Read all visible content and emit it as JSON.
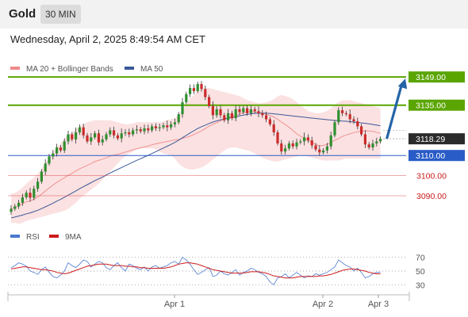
{
  "header": {
    "title": "Gold",
    "timeframe": "30 MIN"
  },
  "datetime": "Wednesday, April 2, 2025 8:49:54 AM CET",
  "colors": {
    "bollinger": "#f08a8a",
    "ma50": "#3b5998",
    "candle_up": "#2f8f2f",
    "candle_down": "#cc2b2b",
    "resistance": "#5aa500",
    "support": "#2a5cc7",
    "red_line": "#e04040",
    "arrow": "#2464a8",
    "rsi": "#4a78d0",
    "rsi_ma": "#cc1b1b",
    "last_price": "#2b2b2b"
  },
  "chart_data": [
    {
      "type": "candlestick",
      "title": "Gold",
      "legend": [
        {
          "name": "MA 20 + Bollinger Bands",
          "color": "#f08a8a"
        },
        {
          "name": "MA 50",
          "color": "#3b5998"
        }
      ],
      "ylim": [
        3077,
        3153
      ],
      "x_labels": [
        "Apr 1",
        "Apr 2",
        "Apr 3"
      ],
      "levels": [
        {
          "value": 3149.0,
          "label": "3149.00",
          "kind": "resistance"
        },
        {
          "value": 3135.0,
          "label": "3135.00",
          "kind": "resistance"
        },
        {
          "value": 3110.0,
          "label": "3110.00",
          "kind": "support"
        },
        {
          "value": 3100.0,
          "label": "3100.00",
          "kind": "red"
        },
        {
          "value": 3090.0,
          "label": "3090.00",
          "kind": "red"
        }
      ],
      "last_price": {
        "value": 3118.29,
        "label": "3118.29"
      },
      "arrow": {
        "from": 3118.3,
        "to": 3149.0
      },
      "closes": [
        3083.5,
        3084.7,
        3086.5,
        3089.2,
        3091.5,
        3089.0,
        3093.5,
        3097.0,
        3102.0,
        3106.0,
        3109.5,
        3111.0,
        3114.0,
        3112.5,
        3117.0,
        3120.5,
        3118.0,
        3121.5,
        3124.0,
        3120.0,
        3117.0,
        3119.0,
        3121.0,
        3116.5,
        3118.0,
        3120.5,
        3122.5,
        3120.0,
        3118.5,
        3121.0,
        3121.5,
        3120.5,
        3122.5,
        3123.0,
        3122.0,
        3123.5,
        3122.5,
        3124.5,
        3123.5,
        3124.0,
        3125.0,
        3124.0,
        3125.5,
        3126.5,
        3130.5,
        3136.5,
        3140.5,
        3143.5,
        3142.0,
        3145.5,
        3143.0,
        3139.0,
        3134.5,
        3130.0,
        3133.0,
        3130.0,
        3127.5,
        3131.0,
        3128.5,
        3133.0,
        3131.5,
        3133.5,
        3131.0,
        3133.0,
        3132.0,
        3131.0,
        3130.0,
        3128.0,
        3125.5,
        3121.5,
        3116.0,
        3112.0,
        3113.5,
        3116.0,
        3114.5,
        3116.5,
        3117.0,
        3119.0,
        3117.5,
        3115.0,
        3113.0,
        3111.5,
        3112.5,
        3114.5,
        3120.0,
        3126.5,
        3132.5,
        3131.0,
        3130.5,
        3128.0,
        3127.0,
        3124.5,
        3120.5,
        3115.5,
        3114.0,
        3116.0,
        3117.0,
        3118.3
      ],
      "ma20": [
        3083.5,
        3084.1,
        3084.9,
        3086.0,
        3087.1,
        3087.4,
        3088.3,
        3089.4,
        3090.8,
        3092.3,
        3093.9,
        3095.3,
        3096.7,
        3097.7,
        3099.0,
        3100.2,
        3101.1,
        3102.3,
        3103.4,
        3104.2,
        3105.1,
        3106.0,
        3107.0,
        3107.6,
        3108.1,
        3108.9,
        3109.7,
        3110.2,
        3110.6,
        3111.1,
        3111.7,
        3112.2,
        3112.8,
        3113.4,
        3113.8,
        3114.3,
        3114.7,
        3115.3,
        3115.8,
        3116.2,
        3116.6,
        3117.0,
        3117.3,
        3117.7,
        3118.0,
        3118.5,
        3119.0,
        3119.6,
        3120.4,
        3121.3,
        3122.3,
        3123.4,
        3124.6,
        3125.5,
        3126.3,
        3127.3,
        3128.0,
        3128.9,
        3129.4,
        3130.0,
        3130.6,
        3131.4,
        3131.6,
        3131.9,
        3131.6,
        3131.5,
        3131.0,
        3130.5,
        3129.9,
        3129.1,
        3128.0,
        3126.6,
        3125.4,
        3124.0,
        3122.5,
        3120.8,
        3119.6,
        3118.4,
        3117.5,
        3116.6,
        3115.6,
        3114.8,
        3115.0,
        3115.5,
        3116.4,
        3117.6,
        3118.4,
        3119.5,
        3120.1,
        3120.8,
        3121.3,
        3121.8,
        3122.1,
        3122.3,
        3122.2,
        3122.0,
        3121.5,
        3121.0
      ],
      "bb_upper": [
        3091.0,
        3091.5,
        3092.5,
        3094.0,
        3096.0,
        3097.5,
        3099.0,
        3101.0,
        3103.5,
        3106.0,
        3109.0,
        3111.5,
        3114.0,
        3116.0,
        3118.5,
        3120.5,
        3121.5,
        3123.0,
        3124.5,
        3125.5,
        3126.5,
        3127.0,
        3127.5,
        3127.5,
        3127.5,
        3127.5,
        3127.5,
        3127.0,
        3126.5,
        3126.0,
        3125.5,
        3125.5,
        3126.0,
        3126.5,
        3126.5,
        3126.5,
        3126.5,
        3126.5,
        3126.5,
        3126.5,
        3127.0,
        3127.5,
        3128.0,
        3128.5,
        3130.0,
        3132.5,
        3135.5,
        3138.5,
        3140.0,
        3142.0,
        3143.0,
        3143.5,
        3143.5,
        3143.0,
        3142.5,
        3142.0,
        3141.5,
        3141.0,
        3140.5,
        3140.0,
        3139.5,
        3138.5,
        3137.5,
        3137.0,
        3136.5,
        3136.0,
        3136.0,
        3136.5,
        3137.0,
        3138.0,
        3139.5,
        3140.0,
        3139.5,
        3139.0,
        3138.0,
        3136.5,
        3135.0,
        3133.5,
        3132.0,
        3131.5,
        3131.0,
        3131.0,
        3131.5,
        3132.0,
        3133.5,
        3135.0,
        3136.5,
        3137.5,
        3137.5,
        3137.5,
        3137.0,
        3136.5,
        3136.0,
        3135.5,
        3135.0,
        3134.5,
        3134.0,
        3133.5
      ],
      "bb_lower": [
        3076.5,
        3076.5,
        3076.0,
        3076.5,
        3077.5,
        3078.0,
        3078.5,
        3079.0,
        3079.5,
        3080.0,
        3080.5,
        3081.0,
        3081.5,
        3082.0,
        3082.5,
        3083.5,
        3085.0,
        3086.5,
        3088.5,
        3090.0,
        3091.5,
        3093.0,
        3094.5,
        3096.0,
        3098.0,
        3100.0,
        3102.0,
        3104.0,
        3106.0,
        3108.0,
        3109.5,
        3111.0,
        3112.0,
        3113.0,
        3113.5,
        3113.5,
        3113.5,
        3113.5,
        3113.0,
        3112.0,
        3111.0,
        3110.5,
        3110.0,
        3108.5,
        3106.0,
        3104.5,
        3103.5,
        3103.0,
        3103.0,
        3103.5,
        3104.0,
        3105.0,
        3106.5,
        3108.0,
        3109.5,
        3111.0,
        3112.5,
        3113.5,
        3114.0,
        3114.0,
        3113.5,
        3113.0,
        3112.5,
        3112.0,
        3111.0,
        3110.0,
        3109.0,
        3108.0,
        3107.5,
        3107.0,
        3107.0,
        3107.5,
        3108.0,
        3108.5,
        3109.0,
        3109.5,
        3110.0,
        3110.0,
        3109.5,
        3109.0,
        3108.5,
        3108.0,
        3107.5,
        3107.5,
        3107.5,
        3107.5,
        3107.5,
        3108.0,
        3108.5,
        3108.5,
        3108.5,
        3108.5,
        3108.5,
        3108.5,
        3108.5,
        3108.5,
        3108.5,
        3108.5
      ],
      "ma50": [
        3079.0,
        3079.4,
        3079.9,
        3080.4,
        3081.0,
        3081.5,
        3082.1,
        3082.8,
        3083.6,
        3084.5,
        3085.4,
        3086.3,
        3087.3,
        3088.2,
        3089.2,
        3090.3,
        3091.3,
        3092.4,
        3093.5,
        3094.5,
        3095.5,
        3096.5,
        3097.5,
        3098.4,
        3099.3,
        3100.3,
        3101.3,
        3102.2,
        3103.1,
        3104.0,
        3104.9,
        3105.8,
        3106.7,
        3107.6,
        3108.4,
        3109.3,
        3110.1,
        3111.0,
        3111.9,
        3112.8,
        3113.7,
        3114.6,
        3115.5,
        3116.5,
        3117.6,
        3118.8,
        3120.0,
        3121.2,
        3122.3,
        3123.4,
        3124.3,
        3125.1,
        3125.9,
        3126.6,
        3127.2,
        3127.7,
        3128.1,
        3128.5,
        3128.9,
        3129.3,
        3129.7,
        3130.1,
        3130.4,
        3130.7,
        3130.9,
        3131.0,
        3131.0,
        3131.0,
        3130.9,
        3130.7,
        3130.5,
        3130.3,
        3130.1,
        3129.9,
        3129.6,
        3129.4,
        3129.2,
        3129.0,
        3128.8,
        3128.6,
        3128.4,
        3128.2,
        3128.0,
        3127.8,
        3127.6,
        3127.4,
        3127.3,
        3127.1,
        3127.0,
        3126.8,
        3126.6,
        3126.4,
        3126.2,
        3126.0,
        3125.7,
        3125.4,
        3125.1,
        3124.8
      ]
    },
    {
      "type": "line",
      "legend": [
        {
          "name": "RSI",
          "color": "#4a78d0"
        },
        {
          "name": "9MA",
          "color": "#cc1b1b"
        }
      ],
      "levels": [
        70,
        50,
        30
      ],
      "ylim": [
        20,
        80
      ],
      "rsi": [
        55,
        58,
        62,
        60,
        57,
        50,
        48,
        45,
        52,
        56,
        48,
        42,
        40,
        44,
        50,
        62,
        58,
        55,
        60,
        66,
        64,
        56,
        60,
        64,
        62,
        55,
        52,
        58,
        62,
        55,
        50,
        60,
        58,
        54,
        52,
        56,
        50,
        56,
        58,
        54,
        56,
        58,
        62,
        64,
        60,
        70,
        66,
        60,
        52,
        45,
        48,
        52,
        55,
        42,
        44,
        50,
        46,
        44,
        48,
        52,
        44,
        48,
        50,
        54,
        52,
        48,
        46,
        42,
        34,
        30,
        40,
        42,
        46,
        40,
        44,
        48,
        44,
        40,
        43,
        42,
        46,
        44,
        46,
        48,
        52,
        56,
        66,
        62,
        58,
        56,
        50,
        54,
        48,
        40,
        42,
        46,
        48,
        48
      ],
      "rsi_ma": [
        53,
        54,
        55,
        56,
        56,
        55,
        54,
        53,
        52,
        52,
        51,
        50,
        48,
        47,
        46,
        47,
        49,
        51,
        53,
        55,
        57,
        58,
        59,
        60,
        60,
        60,
        59,
        58,
        58,
        58,
        57,
        57,
        56,
        56,
        55,
        55,
        54,
        54,
        54,
        54,
        54,
        55,
        56,
        58,
        60,
        61,
        62,
        62,
        61,
        60,
        58,
        56,
        54,
        52,
        51,
        50,
        49,
        48,
        47,
        47,
        47,
        47,
        48,
        49,
        49,
        49,
        48,
        47,
        45,
        43,
        42,
        41,
        40,
        40,
        40,
        41,
        42,
        42,
        42,
        42,
        42,
        43,
        43,
        44,
        45,
        47,
        49,
        51,
        52,
        53,
        53,
        52,
        51,
        50,
        48,
        47,
        46,
        46
      ]
    }
  ]
}
